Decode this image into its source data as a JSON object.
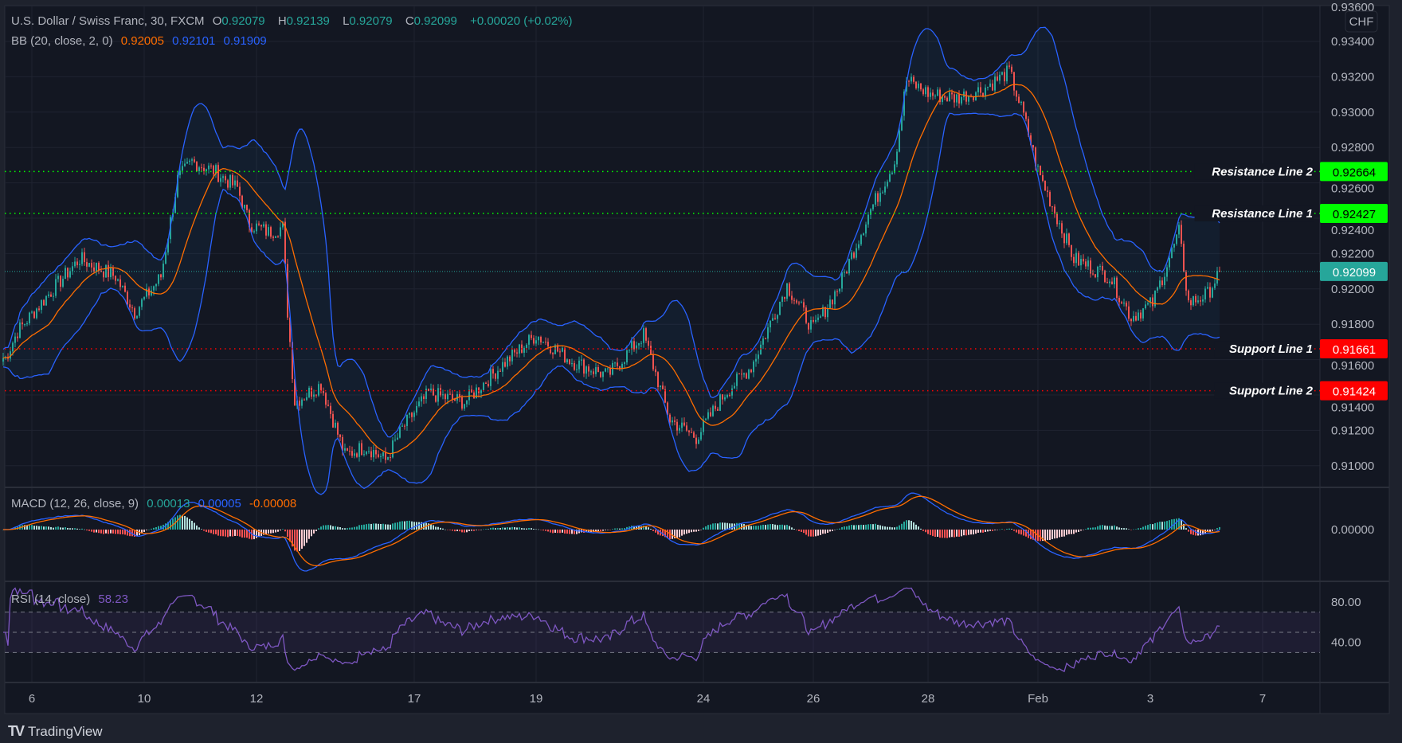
{
  "header": {
    "symbol": "U.S. Dollar / Swiss Franc, 30, FXCM",
    "o_label": "O",
    "o": "0.92079",
    "h_label": "H",
    "h": "0.92139",
    "l_label": "L",
    "l": "0.92079",
    "c_label": "C",
    "c": "0.92099",
    "change": "+0.00020 (+0.02%)"
  },
  "bb_legend": {
    "label": "BB (20, close, 2, 0)",
    "basis": "0.92005",
    "upper": "0.92101",
    "lower": "0.91909"
  },
  "macd_legend": {
    "label": "MACD (12, 26, close, 9)",
    "hist": "0.00013",
    "macd": "0.00005",
    "signal": "-0.00008"
  },
  "rsi_legend": {
    "label": "RSI (14, close)",
    "value": "58.23"
  },
  "currency": "CHF",
  "footer": {
    "logo": "TV",
    "brand": "TradingView"
  },
  "colors": {
    "up": "#26a69a",
    "down": "#ef5350",
    "bb": "#2962ff",
    "basis": "#ff6d00",
    "rsi": "#7e57c2",
    "resistance": "#00ff00",
    "support": "#ff0000",
    "last": "#26a69a"
  },
  "chart_data": {
    "type": "candlestick",
    "title": "U.S. Dollar / Swiss Franc, 30, FXCM",
    "x_unit": "bar index (30-minute bars)",
    "ylim": [
      0.91,
      0.936
    ],
    "price_ticks": [
      "0.93600",
      "0.93400",
      "0.93200",
      "0.93000",
      "0.92800",
      "0.92600",
      "0.92400",
      "0.92200",
      "0.92000",
      "0.91800",
      "0.91600",
      "0.91400",
      "0.91200",
      "0.91000"
    ],
    "time_ticks": [
      {
        "label": "6",
        "bar": 12
      },
      {
        "label": "10",
        "bar": 59
      },
      {
        "label": "12",
        "bar": 106
      },
      {
        "label": "17",
        "bar": 172
      },
      {
        "label": "19",
        "bar": 223
      },
      {
        "label": "24",
        "bar": 293
      },
      {
        "label": "26",
        "bar": 339
      },
      {
        "label": "28",
        "bar": 387
      },
      {
        "label": "Feb",
        "bar": 433
      },
      {
        "label": "3",
        "bar": 480
      },
      {
        "label": "7",
        "bar": 527
      }
    ],
    "close_path": [
      [
        1,
        0.9161
      ],
      [
        6,
        0.9176
      ],
      [
        19,
        0.9197
      ],
      [
        32,
        0.9217
      ],
      [
        47,
        0.9207
      ],
      [
        55,
        0.9187
      ],
      [
        66,
        0.9207
      ],
      [
        73,
        0.9262
      ],
      [
        79,
        0.9272
      ],
      [
        88,
        0.9267
      ],
      [
        98,
        0.9257
      ],
      [
        103,
        0.9237
      ],
      [
        111,
        0.9232
      ],
      [
        117,
        0.9235
      ],
      [
        119,
        0.9187
      ],
      [
        122,
        0.9136
      ],
      [
        133,
        0.9146
      ],
      [
        143,
        0.9106
      ],
      [
        152,
        0.9111
      ],
      [
        160,
        0.9103
      ],
      [
        167,
        0.9121
      ],
      [
        178,
        0.9141
      ],
      [
        193,
        0.9136
      ],
      [
        208,
        0.9156
      ],
      [
        223,
        0.9174
      ],
      [
        238,
        0.9159
      ],
      [
        253,
        0.9151
      ],
      [
        268,
        0.9174
      ],
      [
        279,
        0.9126
      ],
      [
        290,
        0.9116
      ],
      [
        302,
        0.9141
      ],
      [
        313,
        0.9156
      ],
      [
        328,
        0.9202
      ],
      [
        339,
        0.9177
      ],
      [
        350,
        0.9202
      ],
      [
        362,
        0.9242
      ],
      [
        373,
        0.9272
      ],
      [
        378,
        0.9318
      ],
      [
        388,
        0.931
      ],
      [
        399,
        0.9308
      ],
      [
        410,
        0.9313
      ],
      [
        421,
        0.9323
      ],
      [
        427,
        0.9298
      ],
      [
        433,
        0.9267
      ],
      [
        442,
        0.9237
      ],
      [
        448,
        0.9217
      ],
      [
        463,
        0.9207
      ],
      [
        472,
        0.9184
      ],
      [
        481,
        0.9192
      ],
      [
        492,
        0.9232
      ],
      [
        496,
        0.9192
      ],
      [
        504,
        0.9197
      ],
      [
        509,
        0.92099
      ]
    ],
    "levels": [
      {
        "name": "Resistance Line 2",
        "value": 0.92664,
        "label": "0.92664",
        "kind": "resistance"
      },
      {
        "name": "Resistance Line 1",
        "value": 0.92427,
        "label": "0.92427",
        "kind": "resistance"
      },
      {
        "name": "Support Line 1",
        "value": 0.91661,
        "label": "0.91661",
        "kind": "support"
      },
      {
        "name": "Support Line 2",
        "value": 0.91424,
        "label": "0.91424",
        "kind": "support"
      }
    ],
    "last_price": {
      "value": 0.92099,
      "label": "0.92099"
    },
    "macd_ticks": [
      "0.00000"
    ],
    "rsi_ticks": [
      {
        "value": 80,
        "label": "80.00"
      },
      {
        "value": 40,
        "label": "40.00"
      }
    ],
    "rsi_bands": [
      70,
      50,
      30
    ]
  }
}
